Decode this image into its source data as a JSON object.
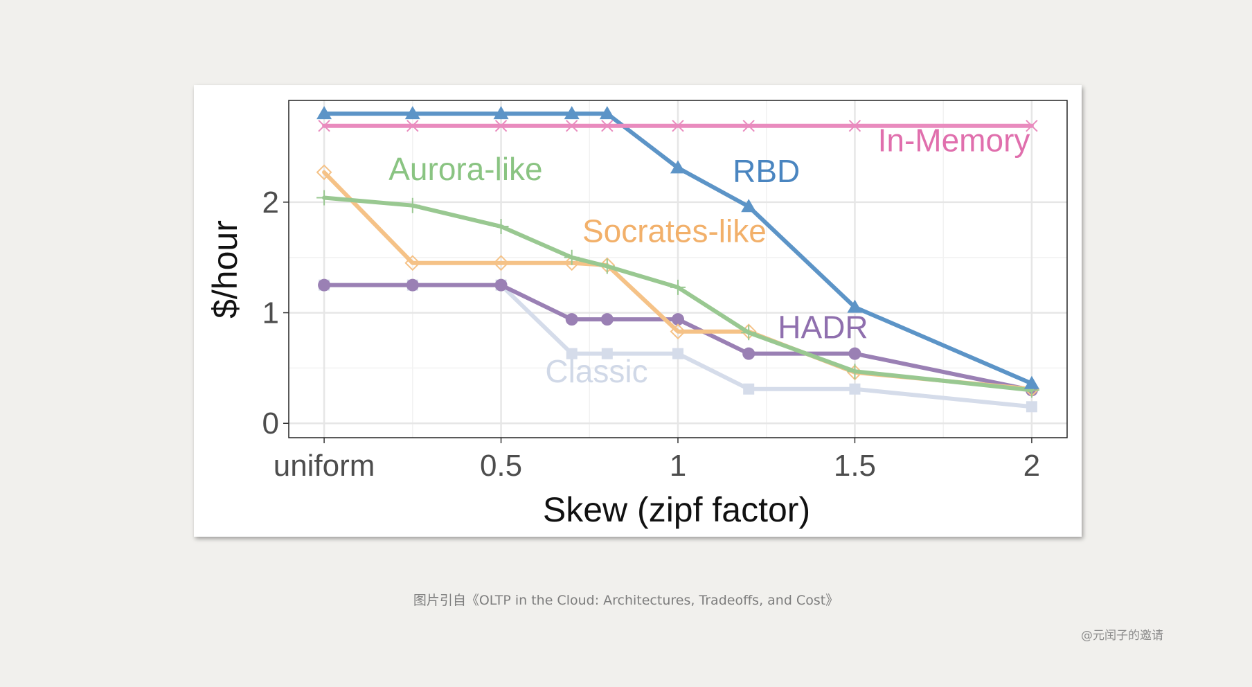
{
  "caption": "图片引自《OLTP in the Cloud: Architectures, Tradeoffs, and Cost》",
  "watermark": "@元闰子的邀请",
  "chart_data": {
    "type": "line",
    "title": "",
    "xlabel": "Skew (zipf factor)",
    "ylabel": "$/hour",
    "x_ticks": [
      {
        "value": 0,
        "label": "uniform"
      },
      {
        "value": 0.5,
        "label": "0.5"
      },
      {
        "value": 1,
        "label": "1"
      },
      {
        "value": 1.5,
        "label": "1.5"
      },
      {
        "value": 2,
        "label": "2"
      }
    ],
    "y_ticks": [
      {
        "value": 0,
        "label": "0"
      },
      {
        "value": 1,
        "label": "1"
      },
      {
        "value": 2,
        "label": "2"
      }
    ],
    "xlim": [
      -0.1,
      2.1
    ],
    "ylim": [
      -0.13,
      2.92
    ],
    "grid": true,
    "legend": "direct labels",
    "x": [
      0,
      0.25,
      0.5,
      0.7,
      0.8,
      1,
      1.2,
      1.5,
      2
    ],
    "series": [
      {
        "name": "Classic",
        "color": "#d5dcea",
        "marker": "square",
        "values": [
          1.25,
          1.25,
          1.25,
          0.63,
          0.63,
          0.63,
          0.31,
          0.31,
          0.15
        ]
      },
      {
        "name": "HADR",
        "color": "#9a80b4",
        "marker": "circle",
        "values": [
          1.25,
          1.25,
          1.25,
          0.94,
          0.94,
          0.94,
          0.63,
          0.63,
          0.3
        ]
      },
      {
        "name": "Socrates-like",
        "color": "#f5c287",
        "marker": "diamond",
        "values": [
          2.27,
          1.45,
          1.45,
          1.45,
          1.43,
          0.83,
          0.83,
          0.46,
          0.31
        ]
      },
      {
        "name": "Aurora-like",
        "color": "#99c891",
        "marker": "plus",
        "values": [
          2.04,
          1.97,
          1.78,
          1.5,
          1.42,
          1.23,
          0.82,
          0.47,
          0.3
        ]
      },
      {
        "name": "RBD",
        "color": "#5c94c7",
        "marker": "triangle",
        "values": [
          2.8,
          2.8,
          2.8,
          2.8,
          2.8,
          2.31,
          1.96,
          1.05,
          0.36
        ]
      },
      {
        "name": "In-Memory",
        "color": "#e98bbe",
        "marker": "x",
        "values": [
          2.69,
          2.69,
          2.69,
          2.69,
          2.69,
          2.69,
          2.69,
          2.69,
          2.69
        ]
      }
    ],
    "annotations": [
      {
        "text": "Aurora-like",
        "series": "Aurora-like",
        "color": "#8ac482",
        "x": 0.4,
        "y": 2.2
      },
      {
        "text": "Socrates-like",
        "series": "Socrates-like",
        "color": "#f2b06a",
        "x": 0.99,
        "y": 1.64
      },
      {
        "text": "RBD",
        "series": "RBD",
        "color": "#4a85c0",
        "x": 1.25,
        "y": 2.18
      },
      {
        "text": "In-Memory",
        "series": "In-Memory",
        "color": "#e06fad",
        "x": 1.78,
        "y": 2.46
      },
      {
        "text": "HADR",
        "series": "HADR",
        "color": "#8f6fae",
        "x": 1.41,
        "y": 0.77
      },
      {
        "text": "Classic",
        "series": "Classic",
        "color": "#d0d8e7",
        "x": 0.77,
        "y": 0.37
      }
    ]
  }
}
